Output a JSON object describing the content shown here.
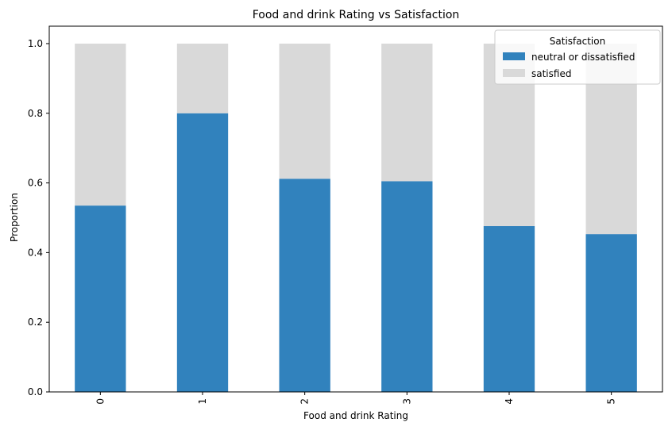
{
  "chart_data": {
    "type": "bar",
    "stacked": true,
    "title": "Food and drink Rating vs Satisfaction",
    "xlabel": "Food and drink Rating",
    "ylabel": "Proportion",
    "categories": [
      "0",
      "1",
      "2",
      "3",
      "4",
      "5"
    ],
    "series": [
      {
        "name": "neutral or dissatisfied",
        "color": "#3182bd",
        "values": [
          0.535,
          0.8,
          0.612,
          0.605,
          0.476,
          0.453
        ]
      },
      {
        "name": "satisfied",
        "color": "#d9d9d9",
        "values": [
          0.465,
          0.2,
          0.388,
          0.395,
          0.524,
          0.547
        ]
      }
    ],
    "ylim": [
      0,
      1.05
    ],
    "yticks": [
      "0.0",
      "0.2",
      "0.4",
      "0.6",
      "0.8",
      "1.0"
    ],
    "grid": false,
    "legend": {
      "title": "Satisfaction",
      "placement": "top-right"
    }
  }
}
